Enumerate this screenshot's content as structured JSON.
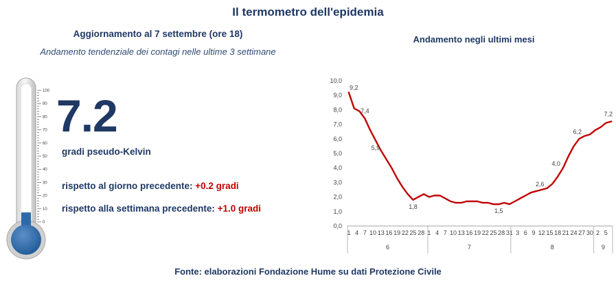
{
  "header": {
    "title": "Il termometro dell'epidemia",
    "update": "Aggiornamento al 7 settembre (ore 18)",
    "trend_subtitle": "Andamento tendenziale dei contagi nelle ultime 3 settimane"
  },
  "thermometer": {
    "value": "7.2",
    "unit": "gradi pseudo-Kelvin",
    "scale_labels": [
      "100",
      "90",
      "80",
      "70",
      "60",
      "50",
      "40",
      "30",
      "20",
      "10",
      "0"
    ],
    "fill_level_percent": 7.2,
    "day_label": "rispetto al giorno precedente: ",
    "day_delta": "+0.2 gradi",
    "week_label": "rispetto alla settimana precedente: ",
    "week_delta": "+1.0 gradi"
  },
  "source": "Fonte: elaborazioni Fondazione Hume su dati Protezione Civile",
  "colors": {
    "navy": "#1f3864",
    "line": "#c00000",
    "thermo_fill": "#2e6aa7"
  },
  "chart_data": {
    "type": "line",
    "title": "Andamento negli ultimi mesi",
    "ylim": [
      0,
      10
    ],
    "y_ticks": [
      "0,0",
      "1,0",
      "2,0",
      "3,0",
      "4,0",
      "5,0",
      "6,0",
      "7,0",
      "8,0",
      "9,0",
      "10,0"
    ],
    "day_ticks": [
      "1",
      "4",
      "7",
      "10",
      "13",
      "16",
      "19",
      "22",
      "25",
      "28",
      "1",
      "4",
      "7",
      "10",
      "13",
      "16",
      "19",
      "22",
      "25",
      "28",
      "31",
      "3",
      "6",
      "9",
      "12",
      "15",
      "18",
      "21",
      "24",
      "27",
      "30",
      "2",
      "5"
    ],
    "months": [
      {
        "label": "6",
        "start": 1,
        "end": 30
      },
      {
        "label": "7",
        "start": 31,
        "end": 61
      },
      {
        "label": "8",
        "start": 62,
        "end": 92
      },
      {
        "label": "9",
        "start": 93,
        "end": 99
      }
    ],
    "x_start": 1,
    "x_end": 99,
    "series": [
      {
        "x": [
          1,
          3,
          5,
          7,
          9,
          11,
          13,
          15,
          17,
          19,
          21,
          23,
          25,
          27,
          29,
          31,
          33,
          35,
          37,
          39,
          41,
          43,
          45,
          47,
          49,
          51,
          53,
          55,
          57,
          59,
          61,
          63,
          65,
          67,
          69,
          71,
          73,
          75,
          77,
          79,
          81,
          83,
          85,
          87,
          89,
          91,
          93,
          95,
          97,
          99
        ],
        "y": [
          9.2,
          8.1,
          7.9,
          7.4,
          6.6,
          5.9,
          5.2,
          4.6,
          4.0,
          3.3,
          2.7,
          2.2,
          1.8,
          2.0,
          2.2,
          2.0,
          2.1,
          2.1,
          1.9,
          1.7,
          1.6,
          1.6,
          1.7,
          1.7,
          1.7,
          1.6,
          1.6,
          1.5,
          1.5,
          1.6,
          1.5,
          1.7,
          1.9,
          2.1,
          2.3,
          2.4,
          2.5,
          2.6,
          2.9,
          3.4,
          4.0,
          4.8,
          5.5,
          6.0,
          6.2,
          6.3,
          6.6,
          6.8,
          7.1,
          7.2
        ]
      }
    ],
    "annotations": [
      {
        "x": 1,
        "y": 9.2,
        "text": "9,2"
      },
      {
        "x": 7,
        "y": 7.4,
        "text": "7,4"
      },
      {
        "x": 11,
        "y": 5.9,
        "text": "5,9"
      },
      {
        "x": 25,
        "y": 1.8,
        "text": "1,8"
      },
      {
        "x": 57,
        "y": 1.5,
        "text": "1,5"
      },
      {
        "x": 75,
        "y": 2.6,
        "text": "2,6"
      },
      {
        "x": 81,
        "y": 4.0,
        "text": "4,0"
      },
      {
        "x": 89,
        "y": 6.2,
        "text": "6,2"
      },
      {
        "x": 99,
        "y": 7.2,
        "text": "7,2"
      }
    ]
  }
}
